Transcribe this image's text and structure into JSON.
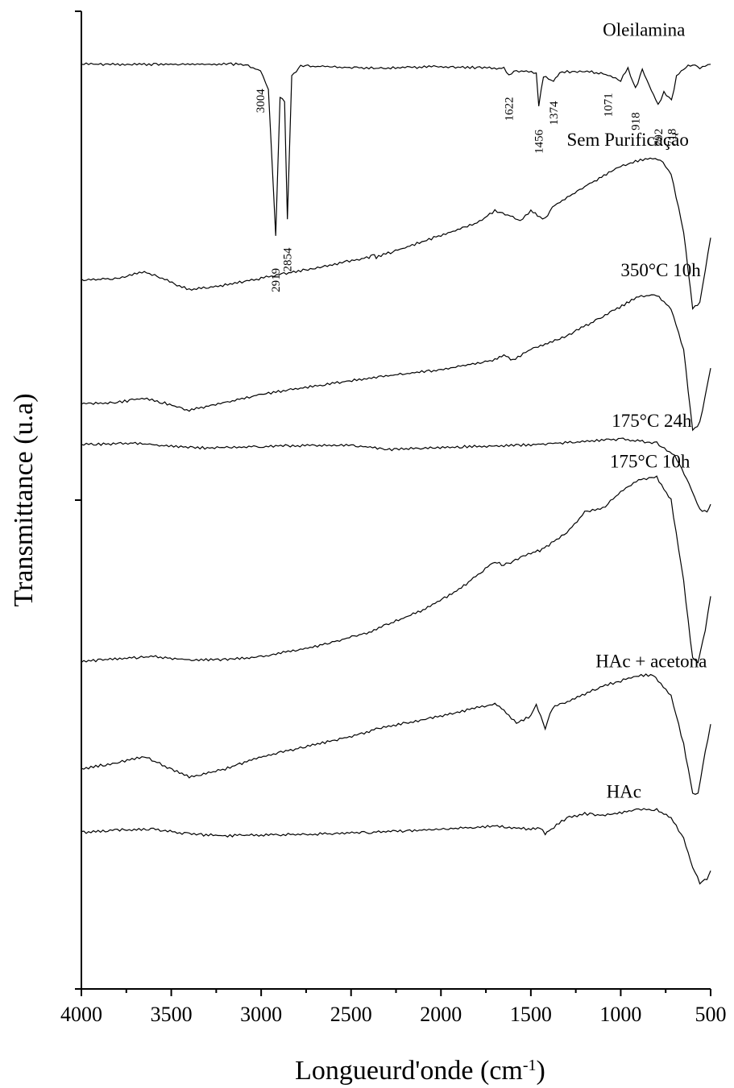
{
  "chart_data": {
    "type": "line",
    "title": "",
    "xlabel": "Longueurd'onde (cm",
    "xlabel_sup": "-1",
    "xlabel_close": ")",
    "ylabel": "Transmittance (u.a)",
    "xlim": [
      4000,
      500
    ],
    "x_reversed": true,
    "xticks": [
      4000,
      3500,
      3000,
      2500,
      2000,
      1500,
      1000,
      500
    ],
    "ylim": [
      0,
      12
    ],
    "grid": false,
    "legend": "none",
    "series": [
      {
        "name": "Oleilamina",
        "points": [
          [
            4000,
            11.35
          ],
          [
            3100,
            11.35
          ],
          [
            3004,
            11.27
          ],
          [
            2960,
            11.05
          ],
          [
            2919,
            9.25
          ],
          [
            2895,
            10.95
          ],
          [
            2870,
            10.9
          ],
          [
            2854,
            9.45
          ],
          [
            2830,
            11.2
          ],
          [
            2780,
            11.33
          ],
          [
            2360,
            11.3
          ],
          [
            2000,
            11.32
          ],
          [
            1650,
            11.3
          ],
          [
            1622,
            11.22
          ],
          [
            1580,
            11.27
          ],
          [
            1470,
            11.25
          ],
          [
            1456,
            10.85
          ],
          [
            1430,
            11.2
          ],
          [
            1374,
            11.15
          ],
          [
            1340,
            11.25
          ],
          [
            1200,
            11.27
          ],
          [
            1071,
            11.22
          ],
          [
            1000,
            11.15
          ],
          [
            960,
            11.3
          ],
          [
            918,
            11.05
          ],
          [
            880,
            11.28
          ],
          [
            792,
            10.85
          ],
          [
            760,
            11.0
          ],
          [
            718,
            10.9
          ],
          [
            690,
            11.2
          ],
          [
            650,
            11.3
          ],
          [
            600,
            11.35
          ],
          [
            560,
            11.3
          ],
          [
            500,
            11.35
          ]
        ]
      },
      {
        "name": "Sem Purificação",
        "points": [
          [
            4000,
            8.7
          ],
          [
            3800,
            8.72
          ],
          [
            3650,
            8.8
          ],
          [
            3550,
            8.72
          ],
          [
            3400,
            8.58
          ],
          [
            3200,
            8.64
          ],
          [
            3000,
            8.72
          ],
          [
            2900,
            8.77
          ],
          [
            2700,
            8.85
          ],
          [
            2400,
            8.98
          ],
          [
            2380,
            9.02
          ],
          [
            2360,
            8.98
          ],
          [
            2200,
            9.1
          ],
          [
            2000,
            9.25
          ],
          [
            1800,
            9.4
          ],
          [
            1700,
            9.55
          ],
          [
            1600,
            9.48
          ],
          [
            1560,
            9.42
          ],
          [
            1500,
            9.55
          ],
          [
            1450,
            9.48
          ],
          [
            1420,
            9.45
          ],
          [
            1380,
            9.6
          ],
          [
            1200,
            9.85
          ],
          [
            1000,
            10.1
          ],
          [
            850,
            10.2
          ],
          [
            780,
            10.18
          ],
          [
            720,
            10.0
          ],
          [
            650,
            9.3
          ],
          [
            600,
            8.35
          ],
          [
            560,
            8.42
          ],
          [
            500,
            9.22
          ]
        ]
      },
      {
        "name": "350°C 10h",
        "points": [
          [
            4000,
            7.18
          ],
          [
            3800,
            7.2
          ],
          [
            3650,
            7.25
          ],
          [
            3550,
            7.2
          ],
          [
            3400,
            7.1
          ],
          [
            3200,
            7.2
          ],
          [
            3000,
            7.3
          ],
          [
            2700,
            7.4
          ],
          [
            2400,
            7.5
          ],
          [
            2000,
            7.6
          ],
          [
            1700,
            7.72
          ],
          [
            1650,
            7.78
          ],
          [
            1600,
            7.72
          ],
          [
            1500,
            7.85
          ],
          [
            1300,
            8.02
          ],
          [
            1100,
            8.25
          ],
          [
            900,
            8.5
          ],
          [
            800,
            8.52
          ],
          [
            720,
            8.35
          ],
          [
            650,
            7.85
          ],
          [
            600,
            6.85
          ],
          [
            560,
            6.95
          ],
          [
            500,
            7.62
          ]
        ]
      },
      {
        "name": "175°C 24h",
        "points": [
          [
            4000,
            6.68
          ],
          [
            3700,
            6.7
          ],
          [
            3500,
            6.66
          ],
          [
            3300,
            6.64
          ],
          [
            3000,
            6.66
          ],
          [
            2500,
            6.68
          ],
          [
            2300,
            6.62
          ],
          [
            2100,
            6.64
          ],
          [
            1800,
            6.66
          ],
          [
            1500,
            6.68
          ],
          [
            1200,
            6.72
          ],
          [
            1000,
            6.75
          ],
          [
            800,
            6.7
          ],
          [
            700,
            6.55
          ],
          [
            620,
            6.2
          ],
          [
            560,
            5.88
          ],
          [
            520,
            5.85
          ],
          [
            500,
            5.95
          ]
        ]
      },
      {
        "name": "175°C 10h",
        "points": [
          [
            4000,
            4.02
          ],
          [
            3800,
            4.05
          ],
          [
            3600,
            4.08
          ],
          [
            3400,
            4.04
          ],
          [
            3200,
            4.04
          ],
          [
            3000,
            4.08
          ],
          [
            2700,
            4.2
          ],
          [
            2400,
            4.38
          ],
          [
            2100,
            4.65
          ],
          [
            1900,
            4.9
          ],
          [
            1700,
            5.25
          ],
          [
            1650,
            5.2
          ],
          [
            1600,
            5.25
          ],
          [
            1500,
            5.35
          ],
          [
            1450,
            5.38
          ],
          [
            1400,
            5.45
          ],
          [
            1300,
            5.6
          ],
          [
            1200,
            5.85
          ],
          [
            1100,
            5.9
          ],
          [
            1000,
            6.1
          ],
          [
            900,
            6.25
          ],
          [
            800,
            6.28
          ],
          [
            720,
            6.0
          ],
          [
            650,
            5.0
          ],
          [
            600,
            4.05
          ],
          [
            570,
            4.02
          ],
          [
            530,
            4.4
          ],
          [
            500,
            4.82
          ]
        ]
      },
      {
        "name": "HAc + acetona",
        "points": [
          [
            4000,
            2.7
          ],
          [
            3800,
            2.78
          ],
          [
            3650,
            2.85
          ],
          [
            3550,
            2.75
          ],
          [
            3400,
            2.6
          ],
          [
            3200,
            2.7
          ],
          [
            3000,
            2.85
          ],
          [
            2700,
            3.0
          ],
          [
            2400,
            3.15
          ],
          [
            2360,
            3.2
          ],
          [
            2100,
            3.3
          ],
          [
            1800,
            3.45
          ],
          [
            1700,
            3.5
          ],
          [
            1650,
            3.42
          ],
          [
            1580,
            3.26
          ],
          [
            1500,
            3.35
          ],
          [
            1470,
            3.5
          ],
          [
            1420,
            3.2
          ],
          [
            1380,
            3.45
          ],
          [
            1200,
            3.62
          ],
          [
            1100,
            3.72
          ],
          [
            1000,
            3.78
          ],
          [
            900,
            3.85
          ],
          [
            820,
            3.85
          ],
          [
            720,
            3.6
          ],
          [
            650,
            3.0
          ],
          [
            600,
            2.4
          ],
          [
            570,
            2.4
          ],
          [
            530,
            2.9
          ],
          [
            500,
            3.25
          ]
        ]
      },
      {
        "name": "HAc",
        "points": [
          [
            4000,
            1.92
          ],
          [
            3800,
            1.95
          ],
          [
            3600,
            1.96
          ],
          [
            3400,
            1.9
          ],
          [
            3200,
            1.88
          ],
          [
            3000,
            1.89
          ],
          [
            2700,
            1.9
          ],
          [
            2400,
            1.92
          ],
          [
            2200,
            1.94
          ],
          [
            2000,
            1.96
          ],
          [
            1700,
            2.0
          ],
          [
            1500,
            1.96
          ],
          [
            1450,
            1.98
          ],
          [
            1420,
            1.9
          ],
          [
            1400,
            1.94
          ],
          [
            1300,
            2.1
          ],
          [
            1200,
            2.15
          ],
          [
            1100,
            2.13
          ],
          [
            900,
            2.2
          ],
          [
            800,
            2.2
          ],
          [
            720,
            2.1
          ],
          [
            650,
            1.85
          ],
          [
            600,
            1.5
          ],
          [
            560,
            1.3
          ],
          [
            520,
            1.35
          ],
          [
            500,
            1.45
          ]
        ]
      }
    ],
    "series_labels": [
      {
        "text": "Oleilamina",
        "x": 1100,
        "y": 11.7
      },
      {
        "text": "Sem Purificação",
        "x": 1300,
        "y": 10.35
      },
      {
        "text": "350°C 10h",
        "x": 1000,
        "y": 8.75
      },
      {
        "text": "175°C 24h",
        "x": 1050,
        "y": 6.9
      },
      {
        "text": "175°C 10h",
        "x": 1060,
        "y": 6.4
      },
      {
        "text": "HAc + acetona",
        "x": 1140,
        "y": 3.95
      },
      {
        "text": "HAc",
        "x": 1080,
        "y": 2.35
      }
    ],
    "peak_labels": [
      {
        "text": "3004",
        "x": 3004,
        "y": 10.9
      },
      {
        "text": "2919",
        "x": 2919,
        "y": 8.7
      },
      {
        "text": "2854",
        "x": 2854,
        "y": 8.95
      },
      {
        "text": "1622",
        "x": 1622,
        "y": 10.8
      },
      {
        "text": "1456",
        "x": 1456,
        "y": 10.4
      },
      {
        "text": "1374",
        "x": 1374,
        "y": 10.75
      },
      {
        "text": "1071",
        "x": 1071,
        "y": 10.85
      },
      {
        "text": "918",
        "x": 918,
        "y": 10.65
      },
      {
        "text": "792",
        "x": 792,
        "y": 10.45
      },
      {
        "text": "718",
        "x": 718,
        "y": 10.45
      }
    ]
  }
}
